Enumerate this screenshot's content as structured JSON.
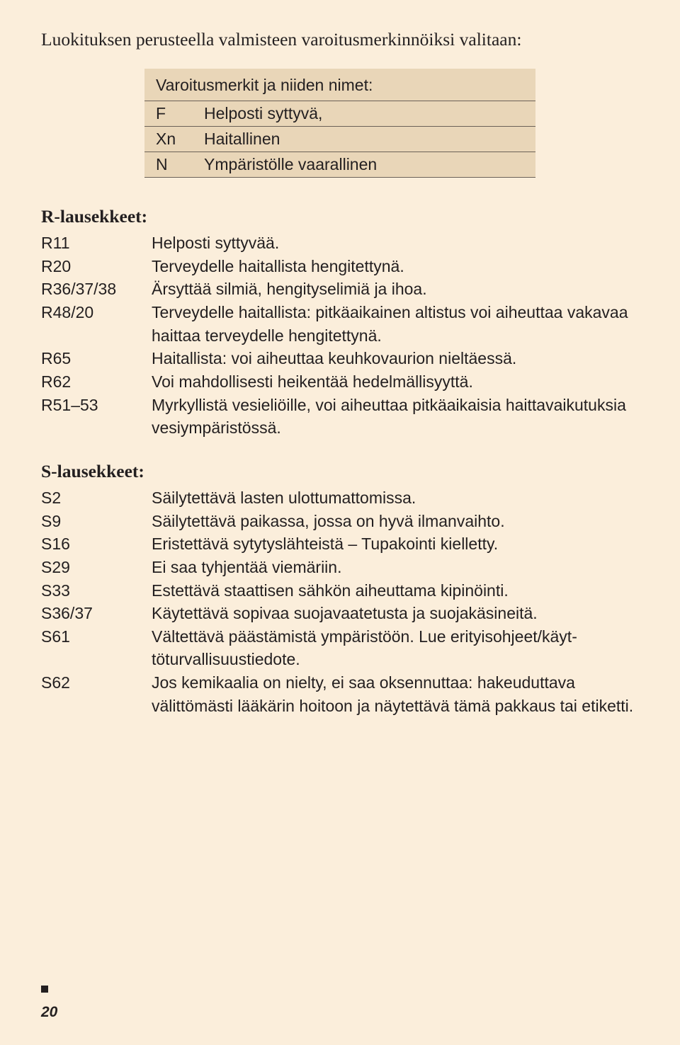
{
  "intro": "Luokituksen perusteella valmisteen varoitusmerkinnöiksi valitaan:",
  "warning_box": {
    "header": "Varoitusmerkit ja niiden nimet:",
    "rows": [
      {
        "symbol": "F",
        "label": "Helposti syttyvä,"
      },
      {
        "symbol": "Xn",
        "label": "Haitallinen"
      },
      {
        "symbol": "N",
        "label": "Ympäristölle vaarallinen"
      }
    ]
  },
  "r_section": {
    "title": "R-lausekkeet:",
    "rows": [
      {
        "code": "R11",
        "text": "Helposti syttyvää."
      },
      {
        "code": "R20",
        "text": "Terveydelle haitallista hengitettynä."
      },
      {
        "code": "R36/37/38",
        "text": "Ärsyttää silmiä, hengityselimiä ja ihoa."
      },
      {
        "code": "R48/20",
        "text": "Terveydelle haitallista: pitkäaikainen altistus voi aiheuttaa vakavaa haittaa terveydelle hengitettynä."
      },
      {
        "code": "R65",
        "text": "Haitallista: voi aiheuttaa keuhkovaurion nieltäessä."
      },
      {
        "code": "R62",
        "text": "Voi mahdollisesti heikentää hedelmällisyyttä."
      },
      {
        "code": "R51–53",
        "text": "Myrkyllistä vesieliöille, voi aiheuttaa pitkäaikaisia haitta­vaikutuksia vesiympäristössä."
      }
    ]
  },
  "s_section": {
    "title": "S-lausekkeet:",
    "rows": [
      {
        "code": "S2",
        "text": "Säilytettävä lasten ulottumattomissa."
      },
      {
        "code": "S9",
        "text": "Säilytettävä paikassa, jossa on hyvä ilmanvaihto."
      },
      {
        "code": "S16",
        "text": "Eristettävä sytytyslähteistä – Tupakointi kielletty."
      },
      {
        "code": "S29",
        "text": "Ei saa tyhjentää viemäriin."
      },
      {
        "code": "S33",
        "text": "Estettävä staattisen sähkön aiheuttama kipinöinti."
      },
      {
        "code": "S36/37",
        "text": "Käytettävä sopivaa suojavaatetusta ja suojakäsineitä."
      },
      {
        "code": "S61",
        "text": "Vältettävä päästämistä ympäristöön. Lue erityisohjeet/käyt­töturvallisuustiedote."
      },
      {
        "code": "S62",
        "text": "Jos kemikaalia on nielty, ei saa oksennuttaa: hakeuduttava välittömästi lääkärin hoitoon ja näytettävä tämä pakkaus tai etiketti."
      }
    ]
  },
  "page_number": "20"
}
